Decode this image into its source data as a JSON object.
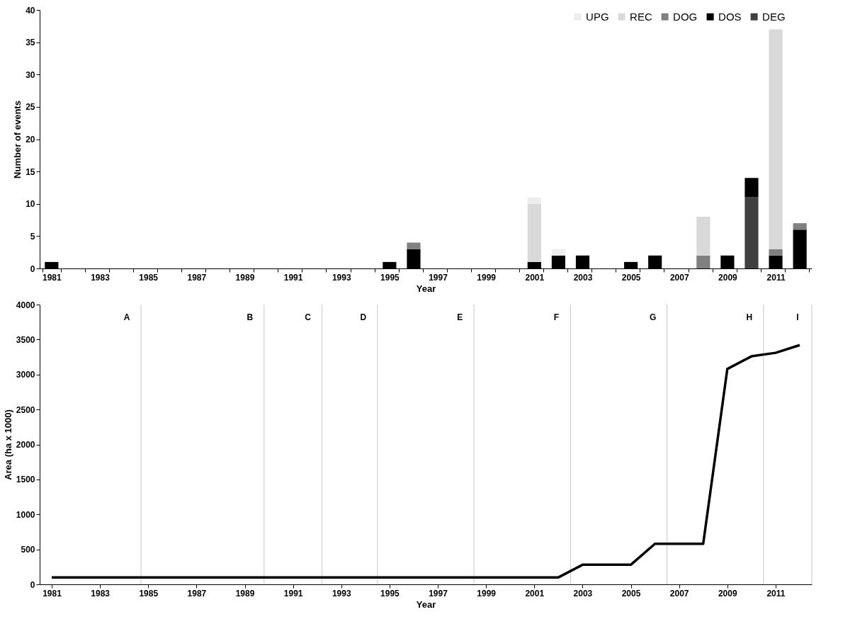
{
  "chart_data": [
    {
      "type": "bar",
      "stacked": true,
      "xlabel": "Year",
      "ylabel": "Number of events",
      "categories": [
        "1981",
        null,
        "1983",
        null,
        "1985",
        null,
        "1987",
        null,
        "1989",
        null,
        "1991",
        null,
        "1993",
        null,
        "1995",
        null,
        "1997",
        null,
        "1999",
        null,
        "2001",
        null,
        "2003",
        null,
        "2005",
        null,
        "2007",
        null,
        "2009",
        null,
        "2011",
        null
      ],
      "series": [
        {
          "name": "DEG",
          "color": "#404040",
          "values": [
            null,
            null,
            null,
            null,
            null,
            null,
            null,
            null,
            null,
            null,
            null,
            null,
            null,
            null,
            null,
            null,
            null,
            null,
            null,
            null,
            null,
            null,
            null,
            null,
            null,
            null,
            null,
            null,
            null,
            11,
            null,
            null
          ]
        },
        {
          "name": "DOS",
          "color": "#000000",
          "values": [
            1,
            null,
            null,
            null,
            null,
            null,
            null,
            null,
            null,
            null,
            null,
            null,
            null,
            null,
            1,
            3,
            null,
            null,
            null,
            null,
            1,
            2,
            2,
            null,
            1,
            2,
            null,
            null,
            2,
            3,
            2,
            6
          ]
        },
        {
          "name": "DOG",
          "color": "#808080",
          "values": [
            null,
            null,
            null,
            null,
            null,
            null,
            null,
            null,
            null,
            null,
            null,
            null,
            null,
            null,
            null,
            1,
            null,
            null,
            null,
            null,
            null,
            null,
            null,
            null,
            null,
            null,
            null,
            2,
            null,
            null,
            1,
            1
          ]
        },
        {
          "name": "REC",
          "color": "#d9d9d9",
          "values": [
            null,
            null,
            null,
            null,
            null,
            null,
            null,
            null,
            null,
            null,
            null,
            null,
            null,
            null,
            null,
            null,
            null,
            null,
            null,
            null,
            9,
            null,
            null,
            null,
            null,
            null,
            null,
            6,
            null,
            null,
            34,
            null
          ]
        },
        {
          "name": "UPG",
          "color": "#eeeeee",
          "values": [
            null,
            null,
            null,
            null,
            null,
            null,
            null,
            null,
            null,
            null,
            null,
            null,
            null,
            null,
            null,
            null,
            null,
            null,
            null,
            null,
            1,
            1,
            null,
            null,
            null,
            null,
            null,
            null,
            null,
            null,
            null,
            null
          ]
        }
      ],
      "ylim": [
        0,
        40
      ],
      "yticks": [
        0,
        5,
        10,
        15,
        20,
        25,
        30,
        35,
        40
      ],
      "grid": false,
      "legend": "top right"
    },
    {
      "type": "line",
      "xlabel": "Year",
      "ylabel": "Area (ha x 1000)",
      "x": [
        1981,
        1982,
        1983,
        1984,
        1985,
        1986,
        1987,
        1988,
        1989,
        1990,
        1991,
        1992,
        1993,
        1994,
        1995,
        1996,
        1997,
        1998,
        1999,
        2000,
        2001,
        2002,
        2003,
        2004,
        2005,
        2006,
        2007,
        2008,
        2009,
        2010,
        2011,
        2012
      ],
      "series": [
        {
          "color": "#000000",
          "values": [
            100,
            100,
            100,
            100,
            100,
            100,
            100,
            100,
            100,
            100,
            100,
            100,
            100,
            100,
            100,
            100,
            100,
            100,
            100,
            100,
            100,
            100,
            280,
            280,
            280,
            580,
            580,
            580,
            3080,
            3260,
            3310,
            3420
          ]
        }
      ],
      "xlim": [
        1980.5,
        2012.5
      ],
      "xticks": [
        1981,
        1983,
        1985,
        1987,
        1989,
        1991,
        1993,
        1995,
        1997,
        1999,
        2001,
        2003,
        2005,
        2007,
        2009,
        2011
      ],
      "ylim": [
        0,
        4000
      ],
      "yticks": [
        0,
        500,
        1000,
        1500,
        2000,
        2500,
        3000,
        3500,
        4000
      ],
      "grid": false,
      "marker": "none",
      "line_style": "solid",
      "ref_lines": [
        {
          "axis": "x",
          "value": 1984.7,
          "label": "A",
          "color": "#d0d0d0"
        },
        {
          "axis": "x",
          "value": 1989.8,
          "label": "B",
          "color": "#d0d0d0"
        },
        {
          "axis": "x",
          "value": 1992.2,
          "label": "C",
          "color": "#d0d0d0"
        },
        {
          "axis": "x",
          "value": 1994.5,
          "label": "D",
          "color": "#d0d0d0"
        },
        {
          "axis": "x",
          "value": 1998.5,
          "label": "E",
          "color": "#d0d0d0"
        },
        {
          "axis": "x",
          "value": 2002.5,
          "label": "F",
          "color": "#d0d0d0"
        },
        {
          "axis": "x",
          "value": 2006.5,
          "label": "G",
          "color": "#d0d0d0"
        },
        {
          "axis": "x",
          "value": 2010.5,
          "label": "H",
          "color": "#d0d0d0"
        },
        {
          "axis": "x",
          "value": 2012.5,
          "label": "I",
          "color": "#d0d0d0"
        }
      ]
    }
  ]
}
